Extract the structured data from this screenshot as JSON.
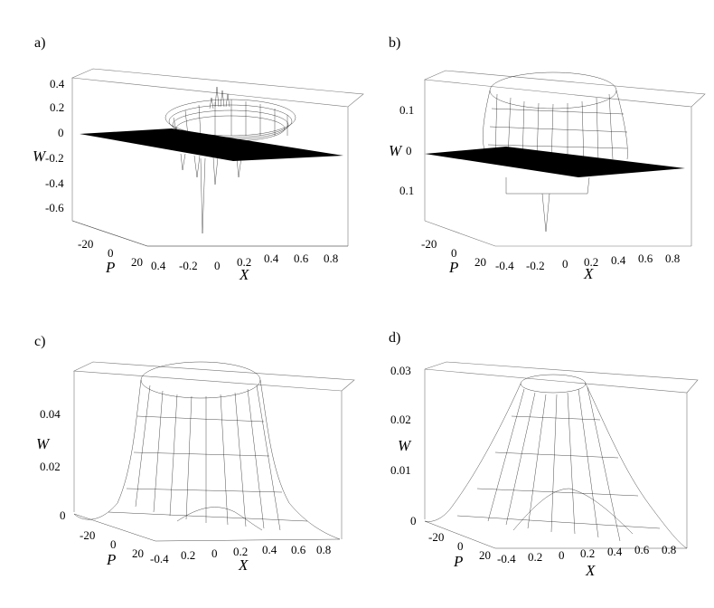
{
  "chart_data": [
    {
      "type": "surface",
      "panel_label": "a)",
      "zlabel": "W",
      "xlabel": "X",
      "ylabel": "P",
      "z_ticks": [
        "0.4",
        "0.2",
        "0",
        "-0.2",
        "-0.4",
        "-0.6"
      ],
      "x_ticks": [
        "0.4",
        "-0.2",
        "0",
        "0.2",
        "0.4",
        "0.6",
        "0.8"
      ],
      "p_ticks": [
        "-20",
        "0",
        "20"
      ],
      "zlim": [
        -0.7,
        0.45
      ]
    },
    {
      "type": "surface",
      "panel_label": "b)",
      "zlabel": "W",
      "xlabel": "X",
      "ylabel": "P",
      "z_ticks": [
        "0.1",
        "0",
        "0.1"
      ],
      "x_ticks": [
        "-0.4",
        "-0.2",
        "0",
        "0.2",
        "0.4",
        "0.6",
        "0.8"
      ],
      "p_ticks": [
        "-20",
        "0",
        "20"
      ],
      "zlim": [
        -0.15,
        0.15
      ]
    },
    {
      "type": "surface",
      "panel_label": "c)",
      "zlabel": "W",
      "xlabel": "X",
      "ylabel": "P",
      "z_ticks": [
        "0.04",
        "0.02",
        "0"
      ],
      "x_ticks": [
        "-0.4",
        "0.2",
        "0",
        "0.2",
        "0.4",
        "0.6",
        "0.8"
      ],
      "p_ticks": [
        "-20",
        "0",
        "20"
      ],
      "zlim": [
        0,
        0.06
      ]
    },
    {
      "type": "surface",
      "panel_label": "d)",
      "zlabel": "W",
      "xlabel": "X",
      "ylabel": "P",
      "z_ticks": [
        "0.03",
        "0.02",
        "0.01",
        "0"
      ],
      "x_ticks": [
        "-0.4",
        "0.2",
        "0",
        "0.2",
        "0.4",
        "0.6",
        "0.8"
      ],
      "p_ticks": [
        "-20",
        "0",
        "20"
      ],
      "zlim": [
        0,
        0.03
      ]
    }
  ]
}
